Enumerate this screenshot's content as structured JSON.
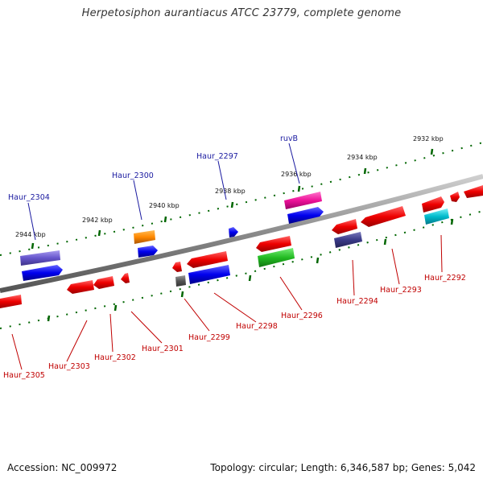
{
  "title": "Herpetosiphon aurantiacus ATCC 23779, complete genome",
  "footer": {
    "accession": "Accession: NC_009972",
    "topology": "Topology: circular; Length: 6,346,587 bp; Genes: 5,042"
  },
  "ticks": [
    "2944 kbp",
    "2942 kbp",
    "2940 kbp",
    "2938 kbp",
    "2936 kbp",
    "2934 kbp",
    "2932 kbp"
  ],
  "top_labels": [
    "Haur_2304",
    "Haur_2300",
    "Haur_2297",
    "ruvB"
  ],
  "bottom_labels": [
    "Haur_2305",
    "Haur_2303",
    "Haur_2302",
    "Haur_2301",
    "Haur_2299",
    "Haur_2298",
    "Haur_2296",
    "Haur_2294",
    "Haur_2293",
    "Haur_2292"
  ],
  "colors": {
    "red": "#ee0000",
    "blue": "#0000ee",
    "purple": "#6655cc",
    "orange": "#ff8800",
    "pink": "#ee1199",
    "green": "#22bb22",
    "cyan": "#00bbcc",
    "dark_indigo": "#3a3a88",
    "gray": "#555555",
    "tick_green": "#006600",
    "top_label": "#1a1aa0",
    "bottom_label": "#c00000"
  }
}
